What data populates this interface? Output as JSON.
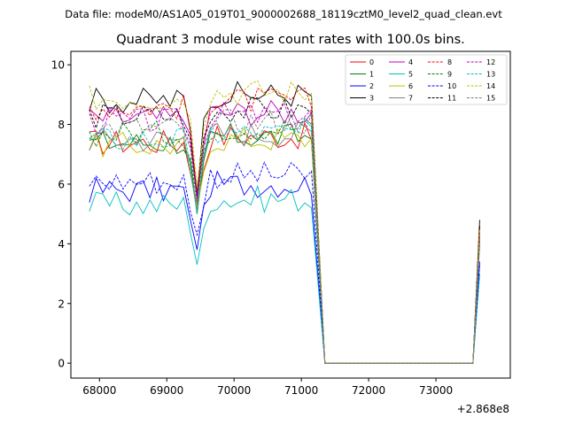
{
  "figure": {
    "suptitle": "Data file: modeM0/AS1A05_019T01_9000002688_18119cztM0_level2_quad_clean.evt"
  },
  "chart_data": {
    "type": "line",
    "title": "Quadrant 3 module wise count rates with 100.0s bins.",
    "xlabel": "",
    "ylabel": "",
    "x_offset_label": "+2.868e8",
    "x_offset": 286800000,
    "xlim": [
      67575,
      74105
    ],
    "ylim": [
      -0.5,
      10.45
    ],
    "xticks": [
      68000,
      69000,
      70000,
      71000,
      72000,
      73000
    ],
    "xtick_labels": [
      "68000",
      "69000",
      "70000",
      "71000",
      "72000",
      "73000"
    ],
    "yticks": [
      0,
      2,
      4,
      6,
      8,
      10
    ],
    "ytick_labels": [
      "0",
      "2",
      "4",
      "6",
      "8",
      "10"
    ],
    "grid": false,
    "legend_position": "top-right",
    "legend_columns": 4,
    "bin_seconds": 100,
    "segments": [
      {
        "x_start": 67850,
        "x_end": 71150
      },
      {
        "x_start": 71350,
        "x_end": 73550
      },
      {
        "x_start": 73650,
        "x_end": 73650
      }
    ],
    "series": [
      {
        "name": "0",
        "color": "#ff0000",
        "dashed": false,
        "level": 7.4,
        "dip": 5.3,
        "spike": 4.6
      },
      {
        "name": "1",
        "color": "#008000",
        "dashed": false,
        "level": 7.4,
        "dip": 5.0,
        "spike": 4.4
      },
      {
        "name": "2",
        "color": "#0000ff",
        "dashed": false,
        "level": 5.8,
        "dip": 3.8,
        "spike": 3.4
      },
      {
        "name": "3",
        "color": "#000000",
        "dashed": false,
        "level": 8.8,
        "dip": 5.6,
        "spike": 4.8
      },
      {
        "name": "4",
        "color": "#bf00bf",
        "dashed": false,
        "level": 8.2,
        "dip": 5.6,
        "spike": 4.2
      },
      {
        "name": "5",
        "color": "#00bfbf",
        "dashed": false,
        "level": 5.3,
        "dip": 3.3,
        "spike": 3.0
      },
      {
        "name": "6",
        "color": "#bfbf00",
        "dashed": false,
        "level": 7.3,
        "dip": 5.2,
        "spike": 4.3
      },
      {
        "name": "7",
        "color": "#808080",
        "dashed": false,
        "level": 7.5,
        "dip": 5.1,
        "spike": 4.0
      },
      {
        "name": "8",
        "color": "#ff0000",
        "dashed": true,
        "level": 8.6,
        "dip": 5.8,
        "spike": 4.5
      },
      {
        "name": "9",
        "color": "#008000",
        "dashed": true,
        "level": 7.7,
        "dip": 5.4,
        "spike": 4.1
      },
      {
        "name": "10",
        "color": "#0000ff",
        "dashed": true,
        "level": 6.1,
        "dip": 4.3,
        "spike": 3.3
      },
      {
        "name": "11",
        "color": "#000000",
        "dashed": true,
        "level": 8.3,
        "dip": 5.5,
        "spike": 4.6
      },
      {
        "name": "12",
        "color": "#bf00bf",
        "dashed": true,
        "level": 8.1,
        "dip": 5.5,
        "spike": 4.3
      },
      {
        "name": "13",
        "color": "#00bfbf",
        "dashed": true,
        "level": 7.5,
        "dip": 5.0,
        "spike": 3.9
      },
      {
        "name": "14",
        "color": "#bfbf00",
        "dashed": true,
        "level": 8.9,
        "dip": 5.9,
        "spike": 4.5
      },
      {
        "name": "15",
        "color": "#808080",
        "dashed": true,
        "level": 7.9,
        "dip": 5.3,
        "spike": 4.0
      }
    ]
  }
}
